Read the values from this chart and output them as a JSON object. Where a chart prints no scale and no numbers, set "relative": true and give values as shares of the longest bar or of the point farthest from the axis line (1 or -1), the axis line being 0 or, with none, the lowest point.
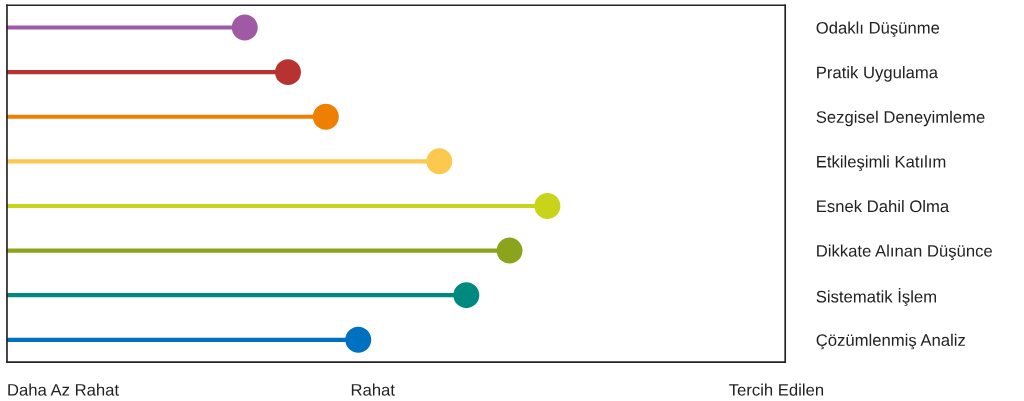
{
  "chart_data": {
    "type": "lollipop",
    "orientation": "horizontal",
    "relative": true,
    "categories": [
      "Odaklı Düşünme",
      "Pratik Uygulama",
      "Sezgisel Deneyimleme",
      "Etkileşimli Katılım",
      "Esnek Dahil Olma",
      "Dikkate Alınan Düşünce",
      "Sistematik İşlem",
      "Çözümlenmiş Analiz"
    ],
    "values": [
      0.44,
      0.52,
      0.59,
      0.8,
      1,
      0.93,
      0.85,
      0.65
    ],
    "colors": [
      "#a05aa5",
      "#b83232",
      "#ee7f00",
      "#fdc84e",
      "#c8d419",
      "#8aa51b",
      "#00897f",
      "#0070c0"
    ],
    "annotations": [
      "Daha Az Rahat",
      "Rahat",
      "Tercih Edilen"
    ],
    "grid": false,
    "legend": false,
    "marker": "circle"
  }
}
